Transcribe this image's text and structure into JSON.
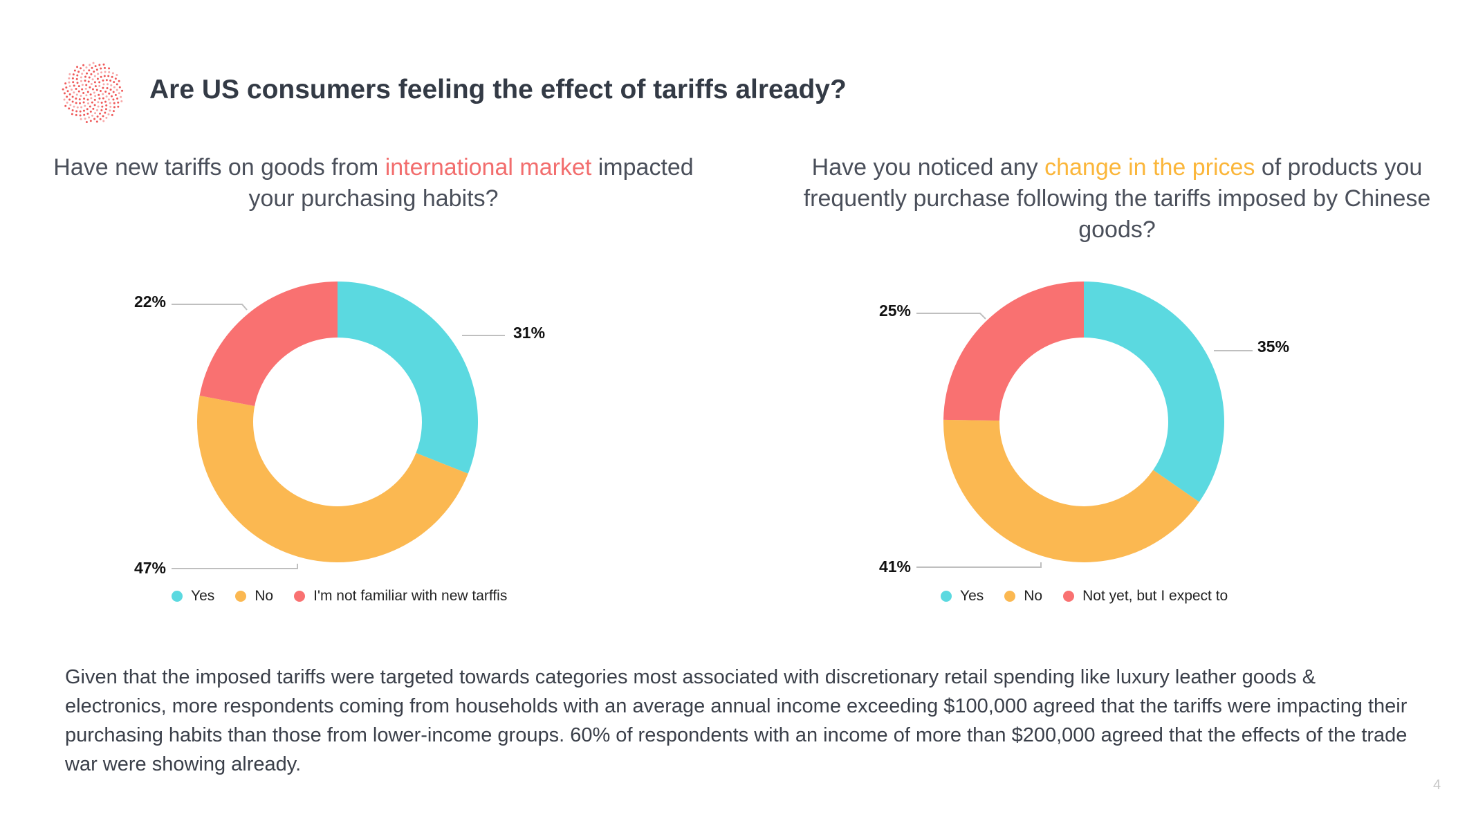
{
  "header": {
    "title": "Are US consumers feeling the effect of tariffs already?"
  },
  "colors": {
    "yes": "#5bd9e0",
    "no": "#fbb851",
    "third": "#f97171",
    "accent_red": "#f26d6d",
    "accent_orange": "#fbb63a"
  },
  "questions": [
    {
      "pre": "Have new tariffs on goods from ",
      "highlight": "international market",
      "post": " impacted your purchasing habits?"
    },
    {
      "pre": "Have you noticed any ",
      "highlight": "change in the prices",
      "post": " of products you frequently purchase following the tariffs imposed by Chinese goods?"
    }
  ],
  "chart_data": [
    {
      "type": "pie",
      "donut": true,
      "title": "Have new tariffs on goods from international market impacted your purchasing habits?",
      "categories": [
        "Yes",
        "No",
        "I'm not familiar with new tarffis"
      ],
      "values": [
        31,
        47,
        22
      ],
      "labels": [
        "31%",
        "47%",
        "22%"
      ],
      "legend_position": "bottom"
    },
    {
      "type": "pie",
      "donut": true,
      "title": "Have you noticed any change in the prices of products you frequently purchase following the tariffs imposed by Chinese goods?",
      "categories": [
        "Yes",
        "No",
        "Not yet, but I expect to"
      ],
      "values": [
        35,
        41,
        25
      ],
      "labels": [
        "35%",
        "41%",
        "25%"
      ],
      "legend_position": "bottom"
    }
  ],
  "legends": [
    [
      "Yes",
      "No",
      "I'm not familiar with new tarffis"
    ],
    [
      "Yes",
      "No",
      "Not yet, but I expect to"
    ]
  ],
  "body": {
    "paragraph": "Given that the imposed tariffs were targeted towards categories most associated with discretionary retail spending like luxury leather goods & electronics, more respondents coming from households with an average annual income exceeding $100,000 agreed that the tariffs were impacting their purchasing habits than those from lower-income groups. 60% of respondents with an income of more than $200,000 agreed that the effects of the trade war were showing already."
  },
  "page_number": "4"
}
